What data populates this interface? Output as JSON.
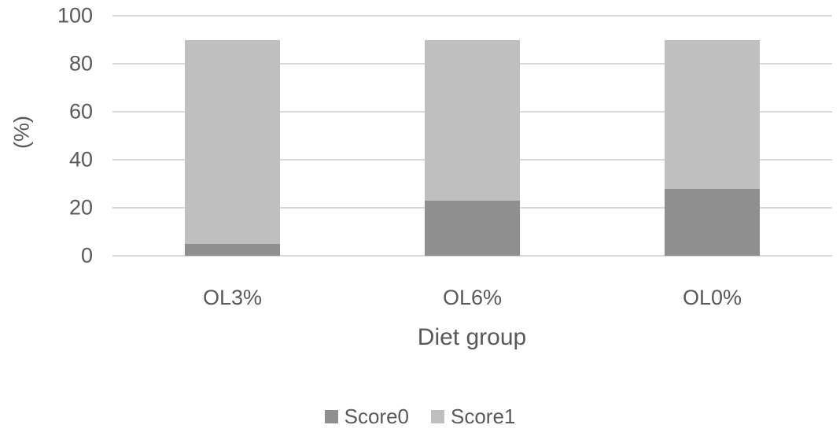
{
  "chart_data": {
    "type": "bar",
    "stacked": true,
    "title": "",
    "xlabel": "Diet group",
    "ylabel": "(%)",
    "categories": [
      "OL3%",
      "OL6%",
      "OL0%"
    ],
    "series": [
      {
        "name": "Score0",
        "color": "#8f8f8f",
        "values": [
          5,
          23,
          28
        ]
      },
      {
        "name": "Score1",
        "color": "#bfbfbf",
        "values": [
          85,
          67,
          62
        ]
      }
    ],
    "ylim": [
      0,
      100
    ],
    "yticks": [
      0,
      20,
      40,
      60,
      80,
      100
    ],
    "grid": true,
    "legend_position": "bottom",
    "colors": {
      "gridline": "#d9d9d9",
      "text": "#595959",
      "background": "#ffffff"
    }
  }
}
